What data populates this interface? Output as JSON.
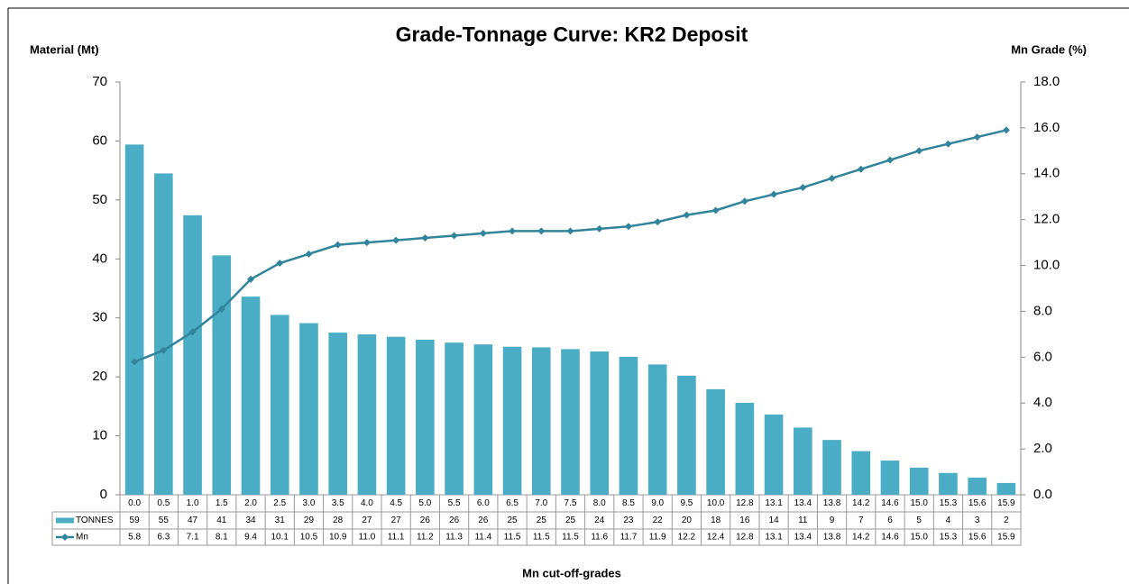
{
  "chart_data": {
    "type": "bar_line",
    "title": "Grade-Tonnage Curve: KR2 Deposit",
    "y_label": "Material (Mt)",
    "y2_label": "Mn Grade (%)",
    "x_label": "Mn cut-off-grades",
    "categories": [
      "0.0",
      "0.5",
      "1.0",
      "1.5",
      "2.0",
      "2.5",
      "3.0",
      "3.5",
      "4.0",
      "4.5",
      "5.0",
      "5.5",
      "6.0",
      "6.5",
      "7.0",
      "7.5",
      "8.0",
      "8.5",
      "9.0",
      "9.5",
      "10.0",
      "12.8",
      "13.1",
      "13.4",
      "13.8",
      "14.2",
      "14.6",
      "15.0",
      "15.3",
      "15.6",
      "15.9"
    ],
    "series": [
      {
        "name": "TONNES",
        "type": "bar",
        "color": "#4bacc6",
        "values": [
          59.4,
          54.5,
          47.4,
          40.6,
          33.6,
          30.5,
          29.1,
          27.5,
          27.2,
          26.8,
          26.3,
          25.8,
          25.5,
          25.1,
          25.0,
          24.7,
          24.3,
          23.4,
          22.1,
          20.2,
          17.9,
          15.6,
          13.6,
          11.4,
          9.3,
          7.4,
          5.8,
          4.6,
          3.7,
          2.9,
          2.0
        ],
        "value_labels": [
          "59",
          "55",
          "47",
          "41",
          "34",
          "31",
          "29",
          "28",
          "27",
          "27",
          "26",
          "26",
          "26",
          "25",
          "25",
          "25",
          "24",
          "23",
          "22",
          "20",
          "18",
          "16",
          "14",
          "11",
          "9",
          "7",
          "6",
          "5",
          "4",
          "3",
          "2"
        ]
      },
      {
        "name": "Mn",
        "type": "line",
        "axis": "y2",
        "color": "#31849b",
        "values": [
          5.8,
          6.3,
          7.1,
          8.1,
          9.4,
          10.1,
          10.5,
          10.9,
          11.0,
          11.1,
          11.2,
          11.3,
          11.4,
          11.5,
          11.5,
          11.5,
          11.6,
          11.7,
          11.9,
          12.2,
          12.4,
          12.8,
          13.1,
          13.4,
          13.8,
          14.2,
          14.6,
          15.0,
          15.3,
          15.6,
          15.9
        ],
        "value_labels": [
          "5.8",
          "6.3",
          "7.1",
          "8.1",
          "9.4",
          "10.1",
          "10.5",
          "10.9",
          "11.0",
          "11.1",
          "11.2",
          "11.3",
          "11.4",
          "11.5",
          "11.5",
          "11.5",
          "11.6",
          "11.7",
          "11.9",
          "12.2",
          "12.4",
          "12.8",
          "13.1",
          "13.4",
          "13.8",
          "14.2",
          "14.6",
          "15.0",
          "15.3",
          "15.6",
          "15.9"
        ]
      }
    ],
    "ylim": [
      0,
      70
    ],
    "yticks": [
      0,
      10,
      20,
      30,
      40,
      50,
      60,
      70
    ],
    "y2lim": [
      0,
      18
    ],
    "y2ticks": [
      {
        "value": 0,
        "label": "0.0"
      },
      {
        "value": 2,
        "label": "2.0"
      },
      {
        "value": 4,
        "label": "4.0"
      },
      {
        "value": 6,
        "label": "6.0"
      },
      {
        "value": 8,
        "label": "8.0"
      },
      {
        "value": 10,
        "label": "10.0"
      },
      {
        "value": 12,
        "label": "12.0"
      },
      {
        "value": 14,
        "label": "14.0"
      },
      {
        "value": 16,
        "label": "16.0"
      },
      {
        "value": 18,
        "label": "18.0"
      }
    ],
    "grid": false
  }
}
